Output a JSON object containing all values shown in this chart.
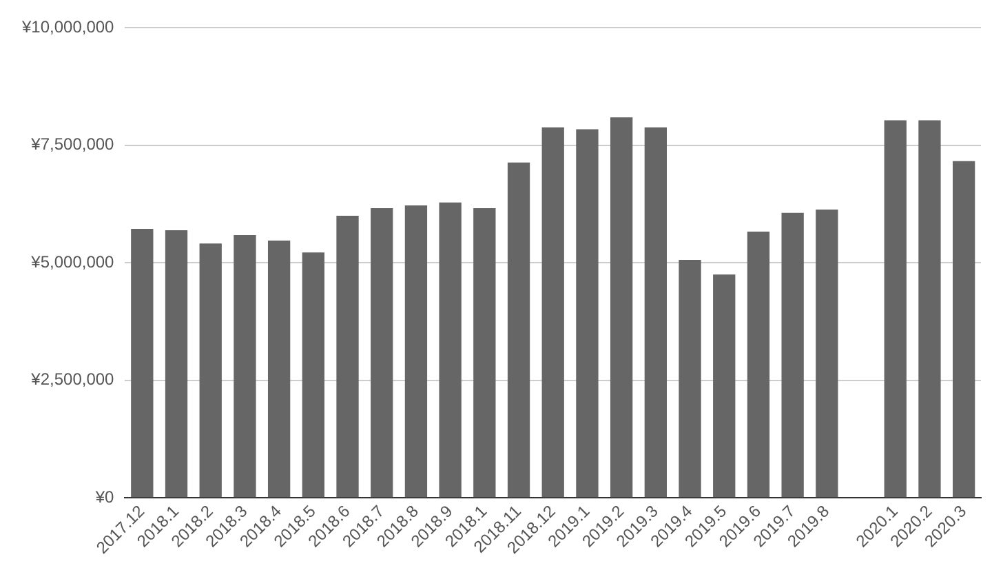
{
  "chart_data": {
    "type": "bar",
    "categories": [
      "2017.12",
      "2018.1",
      "2018.2",
      "2018.3",
      "2018.4",
      "2018.5",
      "2018.6",
      "2018.7",
      "2018.8",
      "2018.9",
      "2018.1",
      "2018.11",
      "2018.12",
      "2019.1",
      "2019.2",
      "2019.3",
      "2019.4",
      "2019.5",
      "2019.6",
      "2019.7",
      "2019.8",
      null,
      "2020.1",
      "2020.2",
      "2020.3"
    ],
    "values": [
      5720000,
      5690000,
      5410000,
      5590000,
      5470000,
      5220000,
      6000000,
      6160000,
      6220000,
      6280000,
      6160000,
      7130000,
      7880000,
      7840000,
      8090000,
      7880000,
      5060000,
      4750000,
      5660000,
      6060000,
      6130000,
      null,
      8030000,
      8030000,
      7160000
    ],
    "color": "#666666",
    "ylim": [
      0,
      10000000
    ],
    "yticks": [
      {
        "value": 0,
        "label": "¥0"
      },
      {
        "value": 2500000,
        "label": "¥2,500,000"
      },
      {
        "value": 5000000,
        "label": "¥5,000,000"
      },
      {
        "value": 7500000,
        "label": "¥7,500,000"
      },
      {
        "value": 10000000,
        "label": "¥10,000,000"
      }
    ],
    "grid": "y",
    "legend": false
  }
}
